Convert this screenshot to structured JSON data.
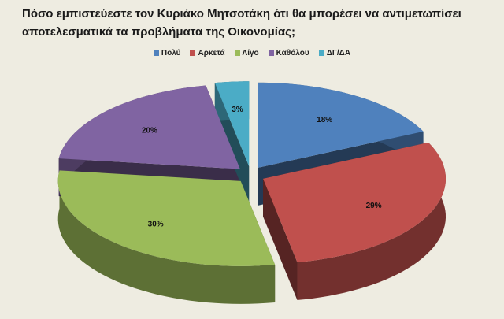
{
  "chart_data": {
    "type": "pie",
    "title": "Πόσο εμπιστεύεστε τον Κυριάκο Μητσοτάκη ότι θα μπορέσει να αντιμετωπίσει αποτελεσματικά τα προβλήματα της Οικονομίας;",
    "legend_position": "top",
    "slices": [
      {
        "label": "Πολύ",
        "value": 18,
        "data_label": "18%",
        "color": "#4f81bd"
      },
      {
        "label": "Αρκετά",
        "value": 29,
        "data_label": "29%",
        "color": "#c0504d"
      },
      {
        "label": "Λίγο",
        "value": 30,
        "data_label": "30%",
        "color": "#9bbb59"
      },
      {
        "label": "Καθόλου",
        "value": 20,
        "data_label": "20%",
        "color": "#8064a2"
      },
      {
        "label": "ΔΓ/ΔΑ",
        "value": 3,
        "data_label": "3%",
        "color": "#4bacc6"
      }
    ]
  }
}
